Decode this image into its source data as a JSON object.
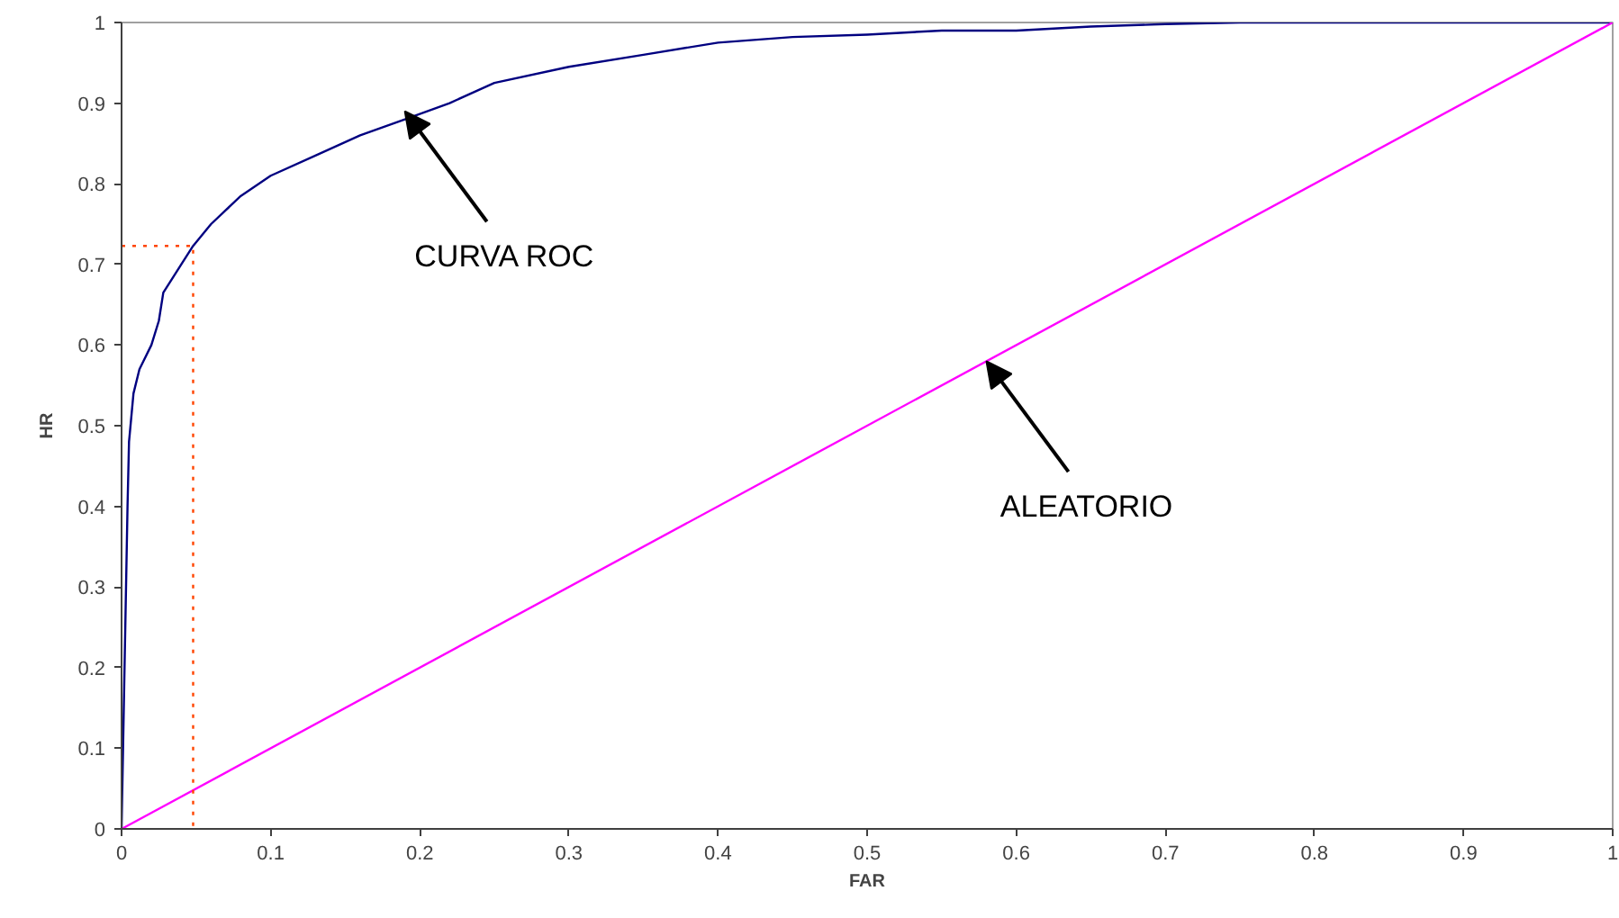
{
  "chart_data": {
    "type": "line",
    "xlabel": "FAR",
    "ylabel": "HR",
    "xlim": [
      0,
      1
    ],
    "ylim": [
      0,
      1
    ],
    "xticks": [
      0,
      0.1,
      0.2,
      0.3,
      0.4,
      0.5,
      0.6,
      0.7,
      0.8,
      0.9,
      1
    ],
    "yticks": [
      0,
      0.1,
      0.2,
      0.3,
      0.4,
      0.5,
      0.6,
      0.7,
      0.8,
      0.9,
      1
    ],
    "grid": false,
    "marker": "none",
    "line_style": "solid",
    "series": [
      {
        "color": "#000080",
        "x": [
          0,
          0.002,
          0.004,
          0.005,
          0.008,
          0.012,
          0.02,
          0.025,
          0.028,
          0.04,
          0.048,
          0.06,
          0.08,
          0.1,
          0.13,
          0.16,
          0.19,
          0.22,
          0.25,
          0.3,
          0.35,
          0.4,
          0.45,
          0.5,
          0.55,
          0.6,
          0.65,
          0.7,
          0.75,
          0.8,
          1
        ],
        "values": [
          0,
          0.2,
          0.4,
          0.48,
          0.54,
          0.57,
          0.6,
          0.63,
          0.665,
          0.7,
          0.723,
          0.75,
          0.785,
          0.81,
          0.835,
          0.86,
          0.88,
          0.9,
          0.925,
          0.945,
          0.96,
          0.975,
          0.982,
          0.985,
          0.99,
          0.99,
          0.995,
          0.998,
          1,
          1,
          1
        ]
      },
      {
        "color": "#ff00ff",
        "x": [
          0,
          1
        ],
        "values": [
          0,
          1
        ]
      },
      {
        "color": "#ff4500",
        "line_style": "dotted",
        "x": [
          0,
          0.048,
          0.048
        ],
        "values": [
          0.723,
          0.723,
          0
        ]
      }
    ],
    "annotations": [
      {
        "text": "CURVA ROC",
        "x": 0.19,
        "y": 0.89
      },
      {
        "text": "ALEATORIO",
        "x": 0.58,
        "y": 0.58
      }
    ]
  }
}
